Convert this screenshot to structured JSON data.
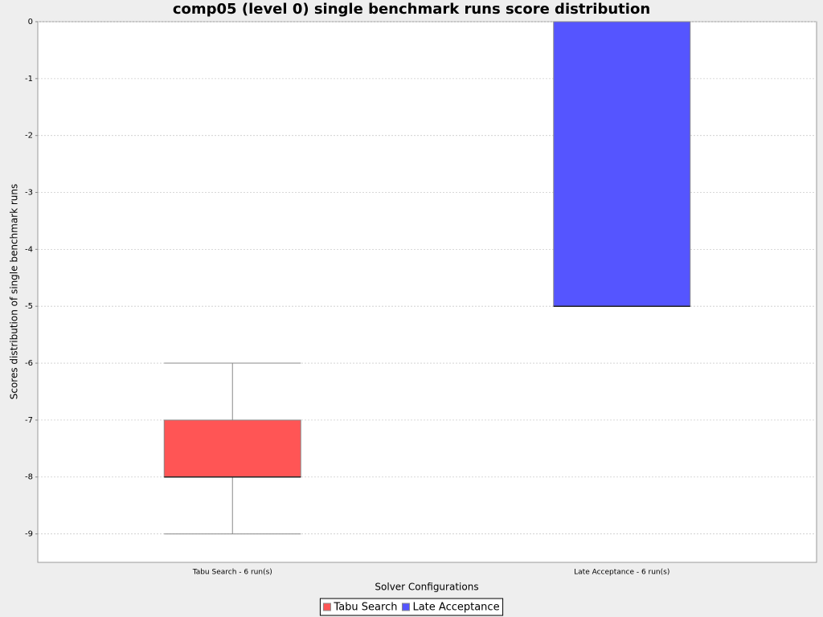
{
  "chart_data": {
    "type": "box",
    "title": "comp05 (level 0) single benchmark runs score distribution",
    "x_label": "Solver Configurations",
    "y_label": "Scores distribution of single benchmark runs",
    "categories": [
      "Tabu Search - 6 run(s)",
      "Late Acceptance - 6 run(s)"
    ],
    "series": [
      {
        "name": "Tabu Search",
        "color": "#ff5555",
        "min": [
          -9,
          null
        ],
        "q1": [
          -8,
          null
        ],
        "median": [
          -8,
          null
        ],
        "q3": [
          -7,
          null
        ],
        "max": [
          -6,
          null
        ]
      },
      {
        "name": "Late Acceptance",
        "color": "#5555ff",
        "min": [
          null,
          -5
        ],
        "q1": [
          null,
          -5
        ],
        "median": [
          null,
          -5
        ],
        "q3": [
          null,
          0
        ],
        "max": [
          null,
          0
        ]
      }
    ],
    "ylim": [
      -9.5,
      0
    ],
    "yticks": [
      0,
      -1,
      -2,
      -3,
      -4,
      -5,
      -6,
      -7,
      -8,
      -9
    ],
    "grid": true,
    "legend": "bottom"
  }
}
